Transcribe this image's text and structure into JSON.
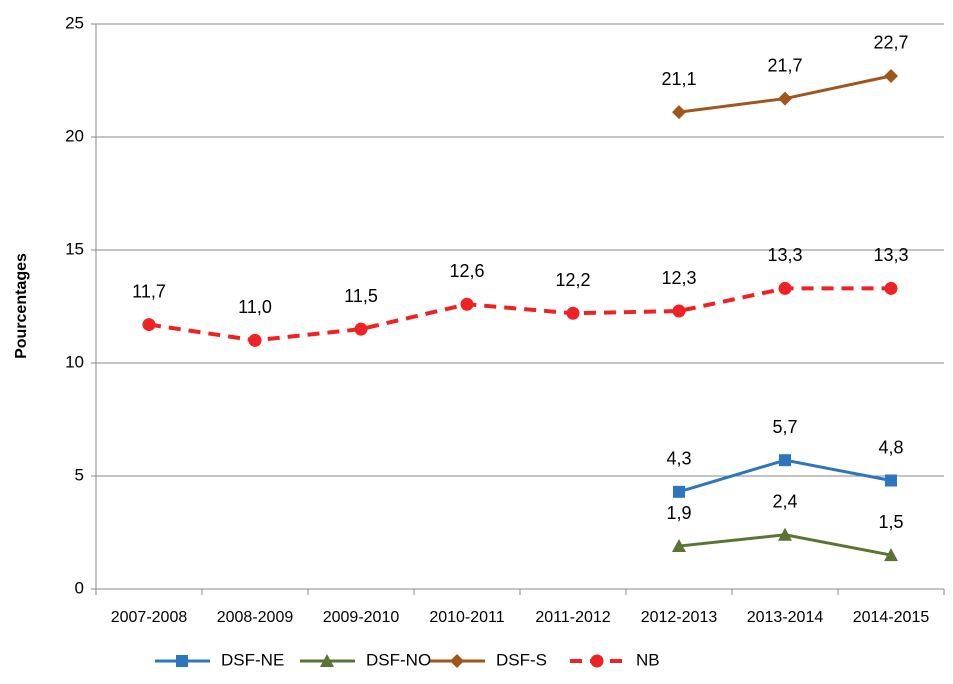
{
  "chart_data": {
    "type": "line",
    "y_label": "Pourcentages",
    "categories": [
      "2007-2008",
      "2008-2009",
      "2009-2010",
      "2010-2011",
      "2011-2012",
      "2012-2013",
      "2013-2014",
      "2014-2015"
    ],
    "ylim": [
      0,
      25
    ],
    "yticks": [
      0,
      5,
      10,
      15,
      20,
      25
    ],
    "grid": true,
    "legend": "bottom",
    "series": [
      {
        "name": "DSF-NE",
        "color": "#2e75c0",
        "marker": "square",
        "dashed": false,
        "values": [
          null,
          null,
          null,
          null,
          null,
          4.3,
          5.7,
          4.8
        ],
        "value_labels": [
          null,
          null,
          null,
          null,
          null,
          "4,3",
          "5,7",
          "4,8"
        ]
      },
      {
        "name": "DSF-NO",
        "color": "#5a7433",
        "marker": "triangle",
        "dashed": false,
        "values": [
          null,
          null,
          null,
          null,
          null,
          1.9,
          2.4,
          1.5
        ],
        "value_labels": [
          null,
          null,
          null,
          null,
          null,
          "1,9",
          "2,4",
          "1,5"
        ]
      },
      {
        "name": "DSF-S",
        "color": "#a0561b",
        "marker": "diamond",
        "dashed": false,
        "values": [
          null,
          null,
          null,
          null,
          null,
          21.1,
          21.7,
          22.7
        ],
        "value_labels": [
          null,
          null,
          null,
          null,
          null,
          "21,1",
          "21,7",
          "22,7"
        ]
      },
      {
        "name": "NB",
        "color": "#ee2222",
        "marker": "circle",
        "dashed": true,
        "values": [
          11.7,
          11.0,
          11.5,
          12.6,
          12.2,
          12.3,
          13.3,
          13.3
        ],
        "value_labels": [
          "11,7",
          "11,0",
          "11,5",
          "12,6",
          "12,2",
          "12,3",
          "13,3",
          "13,3"
        ]
      }
    ]
  }
}
